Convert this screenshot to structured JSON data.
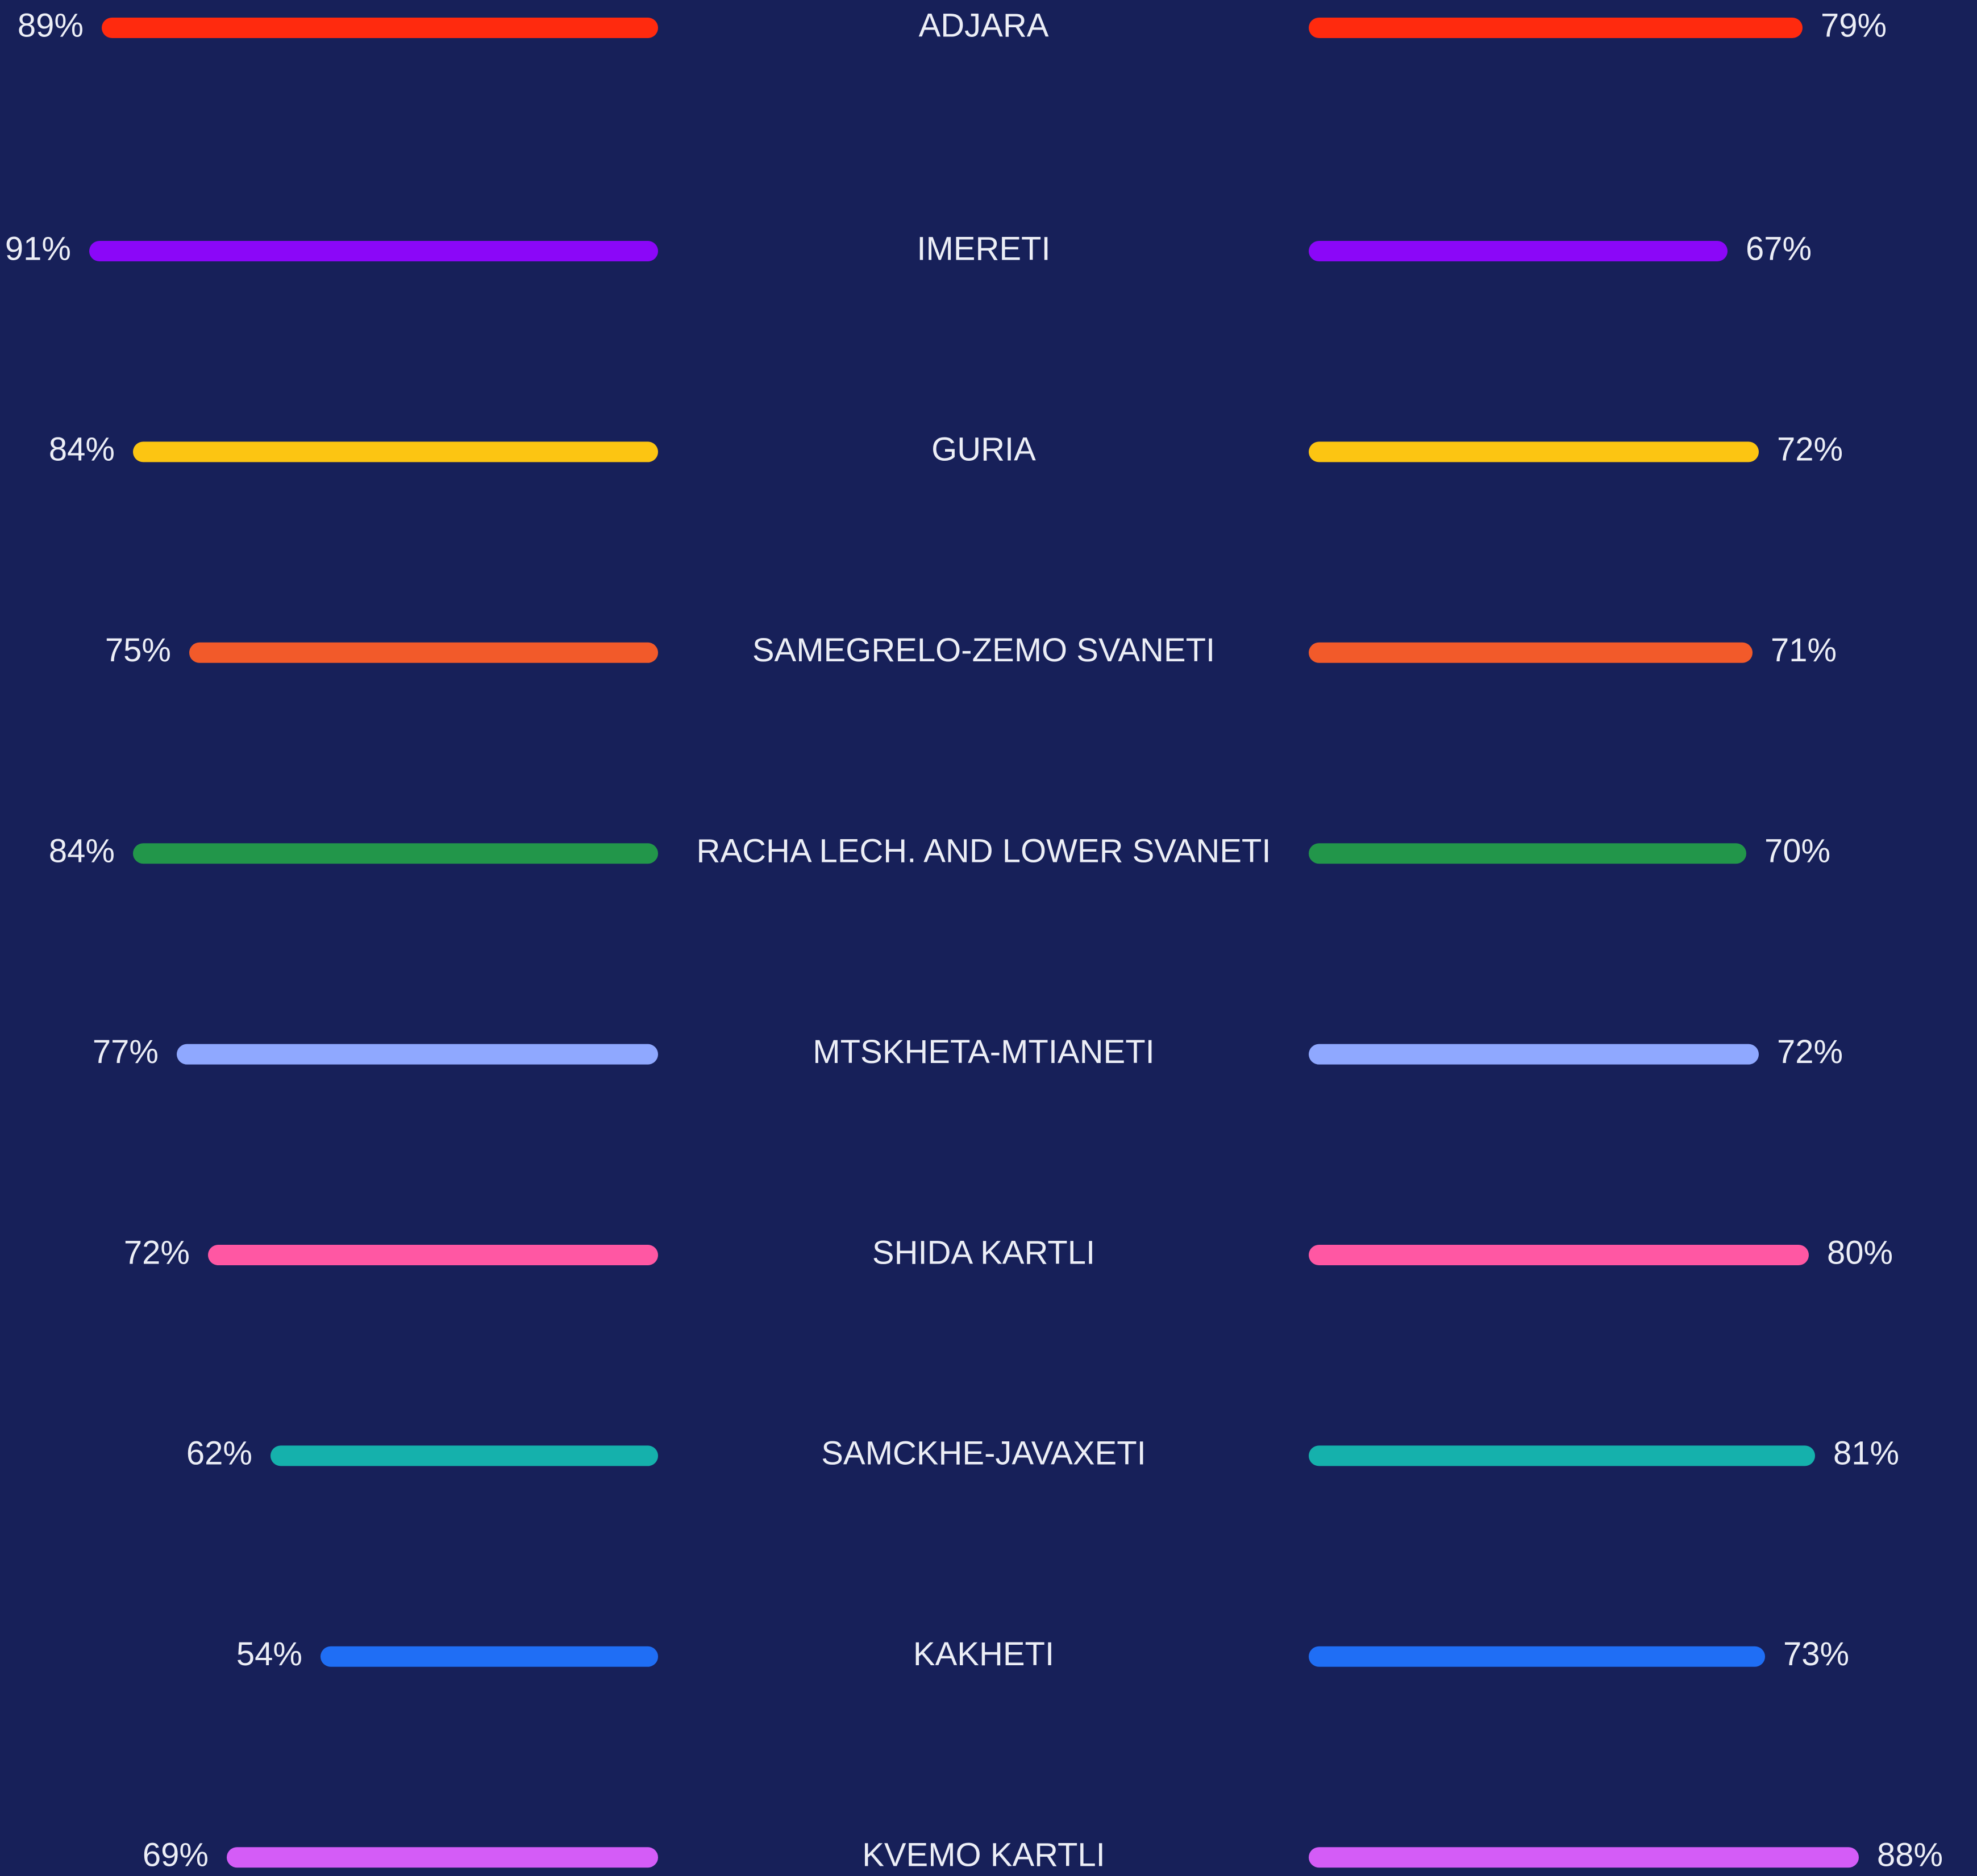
{
  "chart_data": {
    "type": "bar",
    "categories": [
      "ADJARA",
      "IMERETI",
      "GURIA",
      "SAMEGRELO-ZEMO SVANETI",
      "RACHA LECH. AND LOWER SVANETI",
      "MTSKHETA-MTIANETI",
      "SHIDA KARTLI",
      "SAMCKHE-JAVAXETI",
      "KAKHETI",
      "KVEMO KARTLI"
    ],
    "colors": [
      "#ff2a0e",
      "#8b07f8",
      "#fcc512",
      "#f25a2a",
      "#22964a",
      "#8fa8ff",
      "#ff57a3",
      "#15b1ac",
      "#1f6ef5",
      "#d45cf7"
    ],
    "series": [
      {
        "values": [
          89,
          91,
          84,
          75,
          84,
          77,
          72,
          62,
          54,
          69
        ],
        "value_labels": [
          "89%",
          "91%",
          "84%",
          "75%",
          "84%",
          "77%",
          "72%",
          "62%",
          "54%",
          "69%"
        ]
      },
      {
        "values": [
          79,
          67,
          72,
          71,
          70,
          72,
          80,
          81,
          73,
          88
        ],
        "value_labels": [
          "79%",
          "67%",
          "72%",
          "71%",
          "70%",
          "72%",
          "80%",
          "81%",
          "73%",
          "88%"
        ]
      }
    ]
  }
}
